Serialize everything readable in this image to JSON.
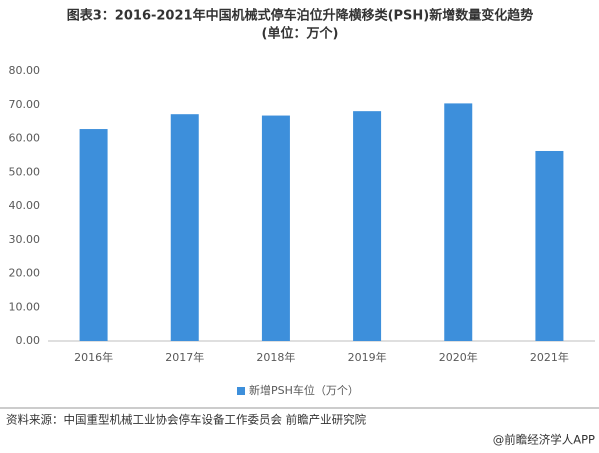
{
  "chart_data": {
    "type": "bar",
    "title": "图表3：2016-2021年中国机械式停车泊位升降横移类(PSH)新增数量变化趋势",
    "subtitle": "(单位：万个)",
    "categories": [
      "2016年",
      "2017年",
      "2018年",
      "2019年",
      "2020年",
      "2021年"
    ],
    "series": [
      {
        "name": "新增PSH车位（万个）",
        "color": "#3d8fdb",
        "values": [
          62.8,
          67.2,
          66.8,
          68.1,
          70.4,
          56.3
        ]
      }
    ],
    "ylim": [
      0,
      80
    ],
    "yticks": [
      {
        "value": 0,
        "label": "0.00"
      },
      {
        "value": 10,
        "label": "10.00"
      },
      {
        "value": 20,
        "label": "20.00"
      },
      {
        "value": 30,
        "label": "30.00"
      },
      {
        "value": 40,
        "label": "40.00"
      },
      {
        "value": 50,
        "label": "50.00"
      },
      {
        "value": 60,
        "label": "60.00"
      },
      {
        "value": 70,
        "label": "70.00"
      },
      {
        "value": 80,
        "label": "80.00"
      }
    ],
    "grid": false,
    "legend": "bottom",
    "source": "资料来源：中国重型机械工业协会停车设备工作委员会 前瞻产业研究院",
    "credit": "@前瞻经济学人APP"
  }
}
